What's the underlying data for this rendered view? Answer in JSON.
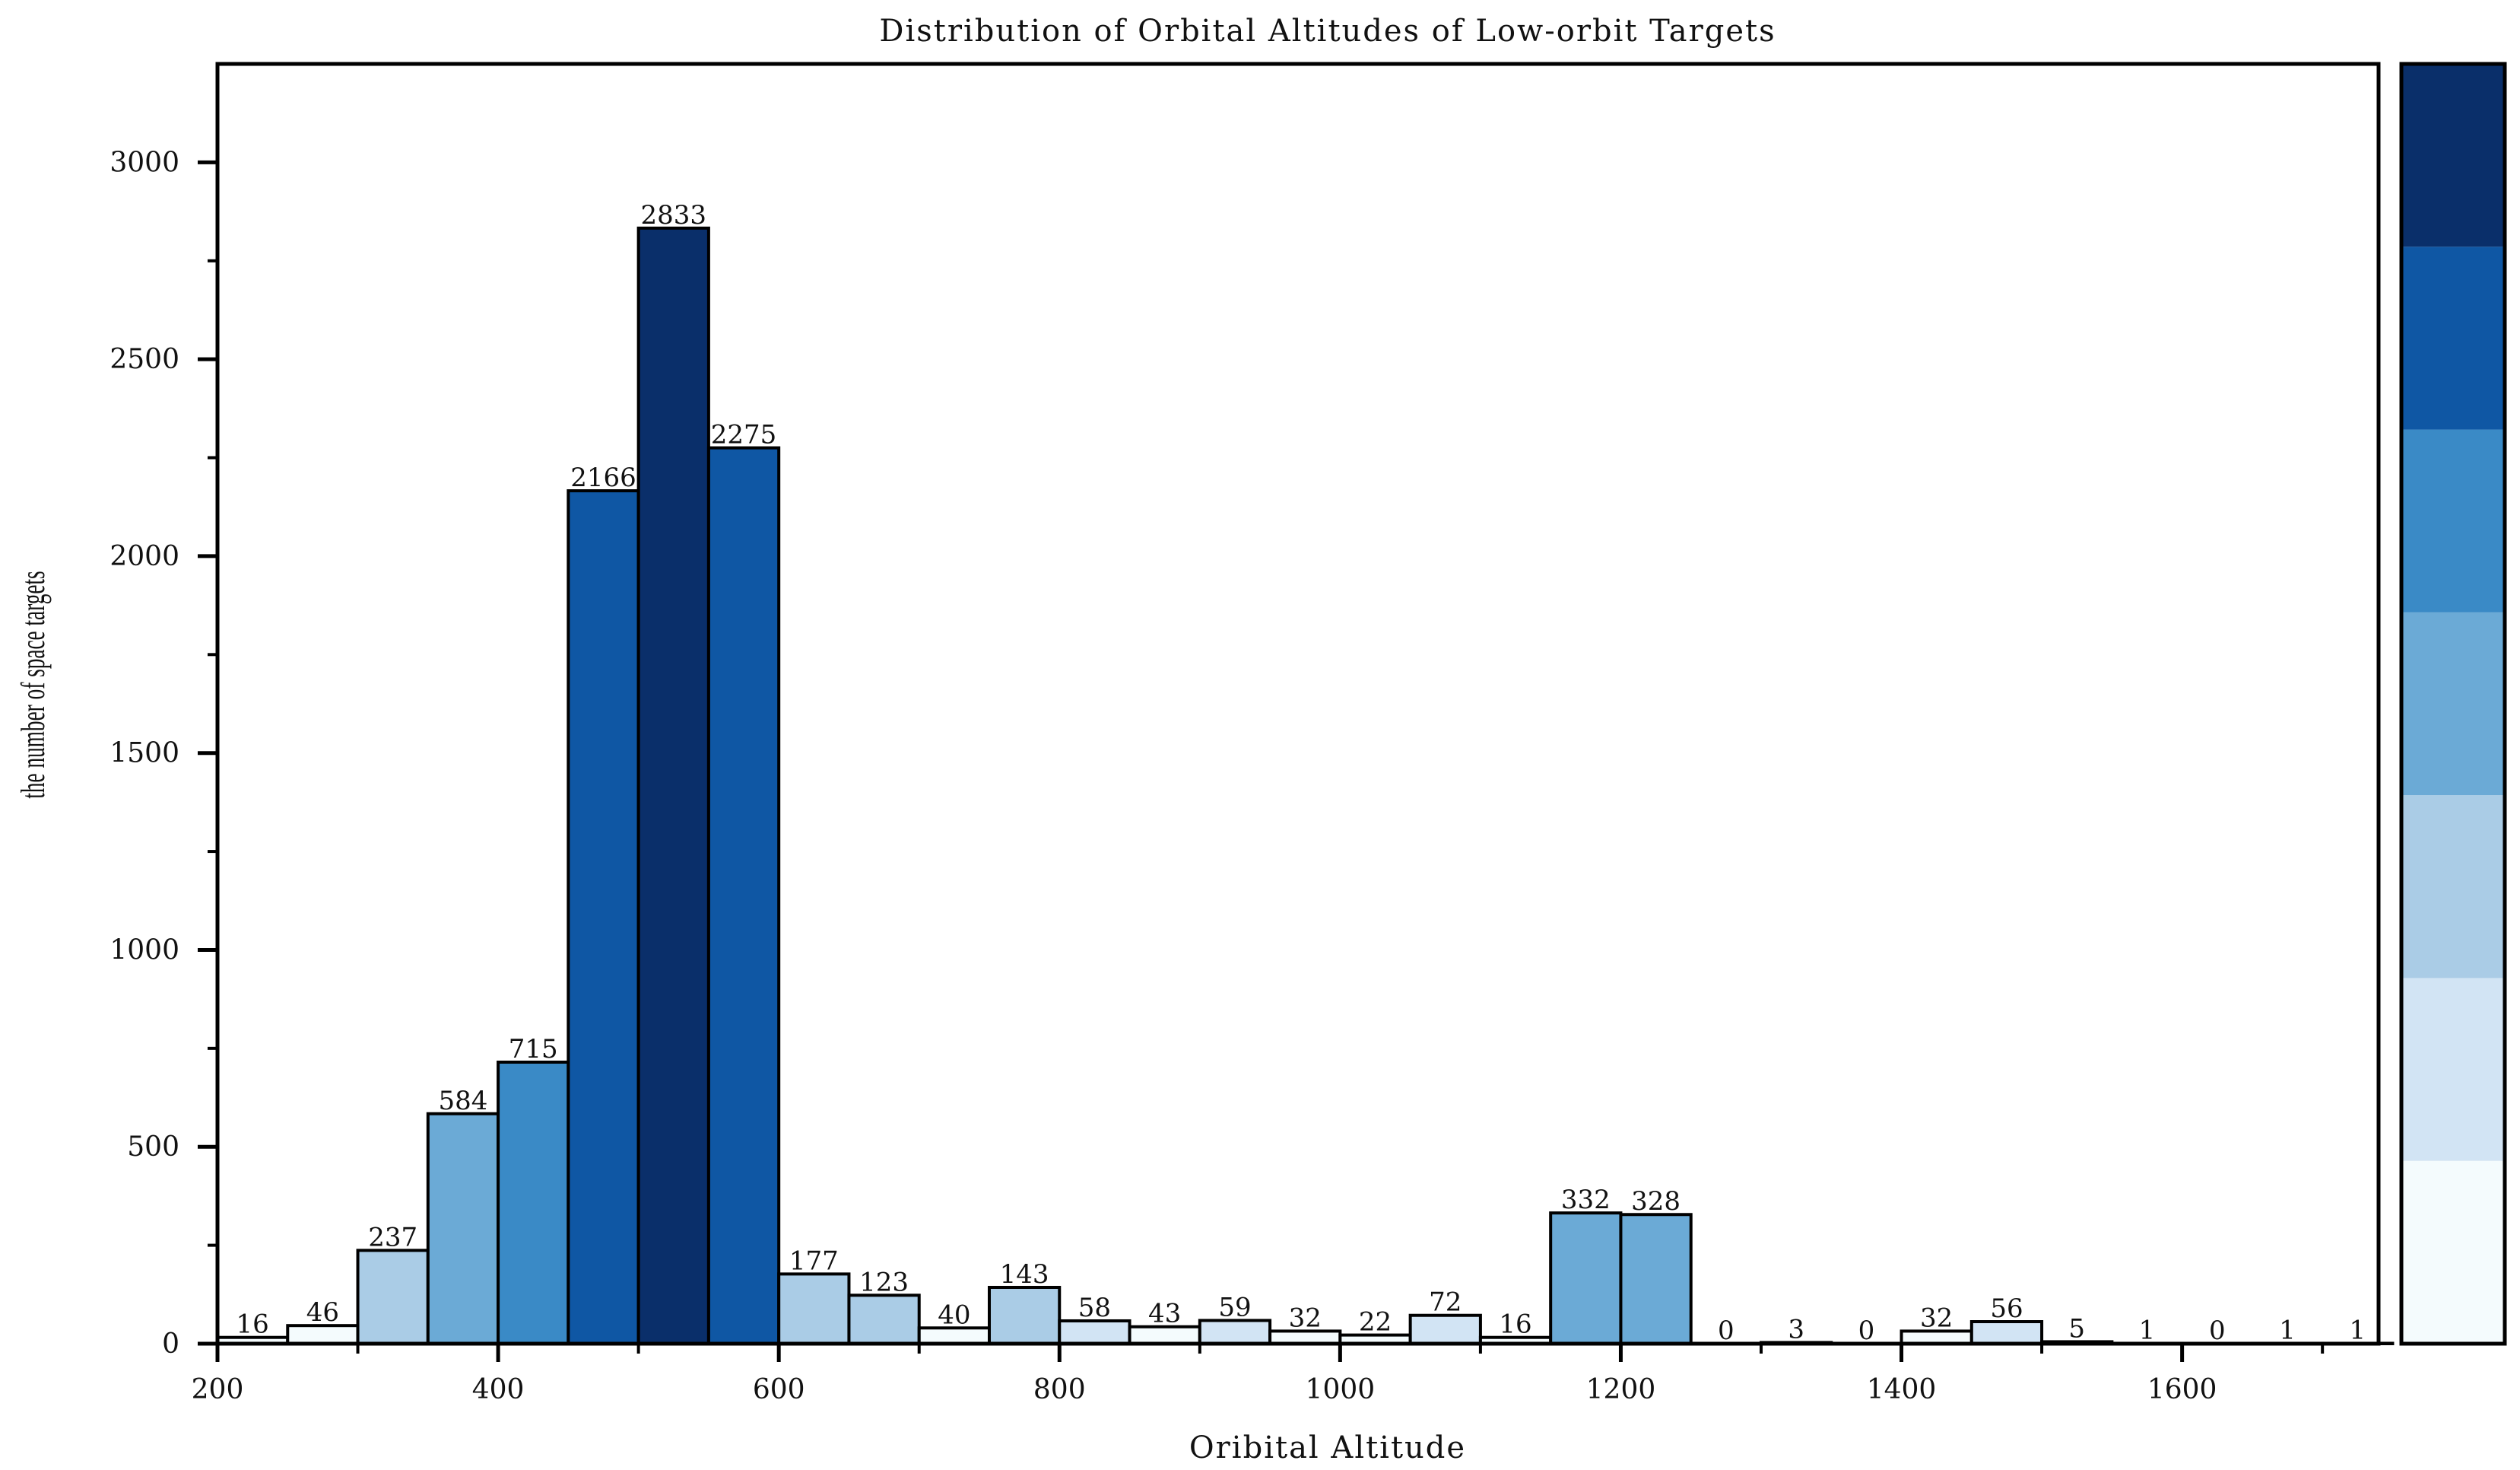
{
  "chart_data": {
    "type": "bar",
    "title": "Distribution of Orbital Altitudes of Low-orbit Targets",
    "xlabel": "Oribital Altitude",
    "ylabel": "the number of space targets",
    "xlim": [
      200,
      1740
    ],
    "ylim": [
      0,
      3250
    ],
    "x_ticks": [
      200,
      400,
      600,
      800,
      1000,
      1200,
      1400,
      1600
    ],
    "y_ticks": [
      0,
      500,
      1000,
      1500,
      2000,
      2500,
      3000
    ],
    "bin_width": 50,
    "bin_starts": [
      200,
      250,
      300,
      350,
      400,
      450,
      500,
      550,
      600,
      650,
      700,
      750,
      800,
      850,
      900,
      950,
      1000,
      1050,
      1100,
      1150,
      1200,
      1250,
      1300,
      1350,
      1400,
      1450,
      1500,
      1550,
      1600,
      1650,
      1700
    ],
    "values": [
      16,
      46,
      237,
      584,
      715,
      2166,
      2833,
      2275,
      177,
      123,
      40,
      143,
      58,
      43,
      59,
      32,
      22,
      72,
      16,
      332,
      328,
      0,
      3,
      0,
      32,
      56,
      5,
      1,
      0,
      1,
      1
    ],
    "colorbar": {
      "orientation": "vertical",
      "position": "right",
      "colors": [
        "#f4fbfd",
        "#d2e4f4",
        "#aacce6",
        "#6baad6",
        "#3a8ac6",
        "#0f57a4",
        "#0a2f6a"
      ]
    }
  }
}
